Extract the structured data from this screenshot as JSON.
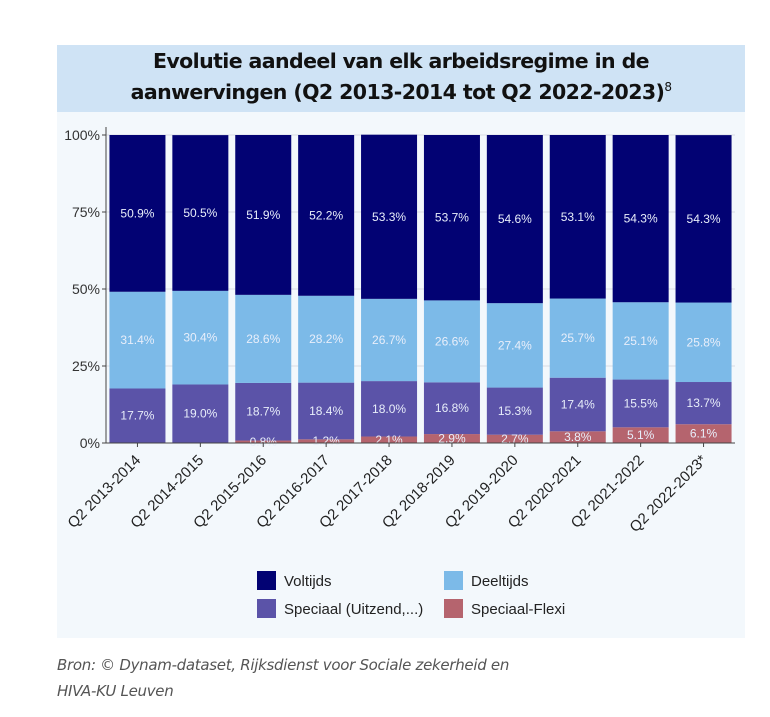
{
  "title": {
    "line1": "Evolutie aandeel van elk arbeidsregime in de",
    "line2": "aanwervingen (Q2 2013-2014 tot Q2 2022-2023)",
    "footnote": "8"
  },
  "source": {
    "line1": "Bron: © Dynam-dataset, Rijksdienst voor Sociale zekerheid en",
    "line2": "HIVA-KU Leuven"
  },
  "chart_data": {
    "type": "bar",
    "stacked": true,
    "categories": [
      "Q2 2013-2014",
      "Q2 2014-2015",
      "Q2 2015-2016",
      "Q2 2016-2017",
      "Q2 2017-2018",
      "Q2 2018-2019",
      "Q2 2019-2020",
      "Q2 2020-2021",
      "Q2 2021-2022",
      "Q2 2022-2023*"
    ],
    "series": [
      {
        "name": "Speciaal-Flexi",
        "color": "#b5646e",
        "values": [
          0,
          0,
          0.8,
          1.2,
          2.1,
          2.9,
          2.7,
          3.8,
          5.1,
          6.1
        ],
        "labels": [
          "",
          "",
          "0.8%",
          "1.2%",
          "2.1%",
          "2.9%",
          "2.7%",
          "3.8%",
          "5.1%",
          "6.1%"
        ]
      },
      {
        "name": "Speciaal (Uitzend,...)",
        "color": "#5b53a8",
        "values": [
          17.7,
          19.0,
          18.7,
          18.4,
          18.0,
          16.8,
          15.3,
          17.4,
          15.5,
          13.7
        ],
        "labels": [
          "17.7%",
          "19.0%",
          "18.7%",
          "18.4%",
          "18.0%",
          "16.8%",
          "15.3%",
          "17.4%",
          "15.5%",
          "13.7%"
        ]
      },
      {
        "name": "Deeltijds",
        "color": "#7cbae8",
        "values": [
          31.4,
          30.4,
          28.6,
          28.2,
          26.7,
          26.6,
          27.4,
          25.7,
          25.1,
          25.8
        ],
        "labels": [
          "31.4%",
          "30.4%",
          "28.6%",
          "28.2%",
          "26.7%",
          "26.6%",
          "27.4%",
          "25.7%",
          "25.1%",
          "25.8%"
        ]
      },
      {
        "name": "Voltijds",
        "color": "#020273",
        "values": [
          50.9,
          50.5,
          51.9,
          52.2,
          53.3,
          53.7,
          54.6,
          53.1,
          54.3,
          54.3
        ],
        "labels": [
          "50.9%",
          "50.5%",
          "51.9%",
          "52.2%",
          "53.3%",
          "53.7%",
          "54.6%",
          "53.1%",
          "54.3%",
          "54.3%"
        ]
      }
    ],
    "yticks": [
      "0%",
      "25%",
      "50%",
      "75%",
      "100%"
    ],
    "ytick_values": [
      0,
      25,
      50,
      75,
      100
    ],
    "ylim": [
      0,
      100
    ],
    "legend": {
      "placement": "bottom",
      "order": [
        "Voltijds",
        "Deeltijds",
        "Speciaal (Uitzend,...)",
        "Speciaal-Flexi"
      ]
    },
    "grid": true
  }
}
